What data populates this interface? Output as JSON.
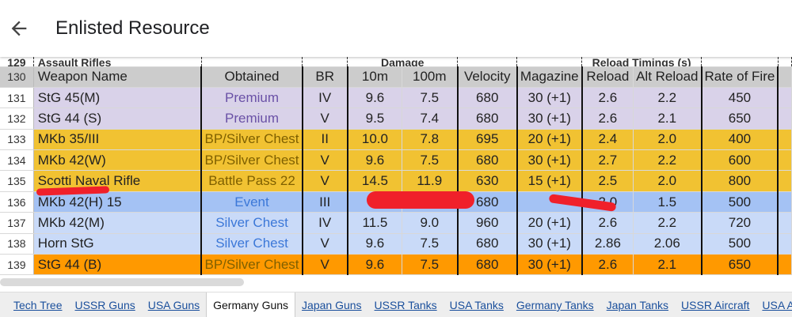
{
  "app": {
    "title": "Enlisted Resource",
    "back_icon": "arrow-left-icon"
  },
  "sheet": {
    "group_row": {
      "row_number": "129",
      "section": "Assault Rifles",
      "damage": "Damage",
      "reload": "Reload Timings (s)"
    },
    "header": {
      "row_number": "130",
      "columns": [
        "Weapon Name",
        "Obtained",
        "BR",
        "10m",
        "100m",
        "Velocity",
        "Magazine",
        "Reload",
        "Alt Reload",
        "Rate of Fire"
      ]
    },
    "rows": [
      {
        "n": "131",
        "cells": [
          "StG 45(M)",
          "Premium",
          "IV",
          "9.6",
          "7.5",
          "680",
          "30 (+1)",
          "2.6",
          "2.2",
          "450"
        ],
        "bg": "#d9d2e9",
        "obtained_color": "#6a51a6"
      },
      {
        "n": "132",
        "cells": [
          "StG 44 (S)",
          "Premium",
          "V",
          "9.5",
          "7.4",
          "680",
          "30 (+1)",
          "2.6",
          "2.1",
          "650"
        ],
        "bg": "#d9d2e9",
        "obtained_color": "#6a51a6"
      },
      {
        "n": "133",
        "cells": [
          "MKb 35/III",
          "BP/Silver Chest",
          "II",
          "10.0",
          "7.8",
          "695",
          "20 (+1)",
          "2.4",
          "2.0",
          "400"
        ],
        "bg": "#f1c232",
        "obtained_color": "#7f6000"
      },
      {
        "n": "134",
        "cells": [
          "MKb 42(W)",
          "BP/Silver Chest",
          "V",
          "9.6",
          "7.5",
          "680",
          "30 (+1)",
          "2.7",
          "2.2",
          "600"
        ],
        "bg": "#f1c232",
        "obtained_color": "#7f6000"
      },
      {
        "n": "135",
        "cells": [
          "Scotti Naval Rifle",
          "Battle Pass 22",
          "V",
          "14.5",
          "11.9",
          "630",
          "15 (+1)",
          "2.5",
          "2.0",
          "800"
        ],
        "bg": "#f1c232",
        "obtained_color": "#7f6000"
      },
      {
        "n": "136",
        "cells": [
          "MKb 42(H) 15",
          "Event",
          "III",
          "",
          "",
          "680",
          "",
          "2.0",
          "1.5",
          "500"
        ],
        "bg": "#a4c2f4",
        "obtained_color": "#3c78d8"
      },
      {
        "n": "137",
        "cells": [
          "MKb 42(M)",
          "Silver Chest",
          "IV",
          "11.5",
          "9.0",
          "960",
          "20 (+1)",
          "2.6",
          "2.2",
          "720"
        ],
        "bg": "#c9daf8",
        "obtained_color": "#3c78d8"
      },
      {
        "n": "138",
        "cells": [
          "Horn StG",
          "Silver Chest",
          "V",
          "9.6",
          "7.5",
          "680",
          "30 (+1)",
          "2.86",
          "2.06",
          "500"
        ],
        "bg": "#c9daf8",
        "obtained_color": "#3c78d8"
      },
      {
        "n": "139",
        "cells": [
          "StG 44 (B)",
          "BP/Silver Chest",
          "V",
          "9.6",
          "7.5",
          "680",
          "30 (+1)",
          "2.6",
          "2.1",
          "650"
        ],
        "bg": "#ff9900",
        "obtained_color": "#7f6000"
      }
    ]
  },
  "sheet_tabs": [
    {
      "label": "Tech Tree",
      "active": false
    },
    {
      "label": "USSR Guns",
      "active": false
    },
    {
      "label": "USA Guns",
      "active": false
    },
    {
      "label": "Germany Guns",
      "active": true
    },
    {
      "label": "Japan Guns",
      "active": false
    },
    {
      "label": "USSR Tanks",
      "active": false
    },
    {
      "label": "USA Tanks",
      "active": false
    },
    {
      "label": "Germany Tanks",
      "active": false
    },
    {
      "label": "Japan Tanks",
      "active": false
    },
    {
      "label": "USSR Aircraft",
      "active": false
    },
    {
      "label": "USA Aircraft",
      "active": false
    }
  ],
  "annotation_color": "#f0202a"
}
